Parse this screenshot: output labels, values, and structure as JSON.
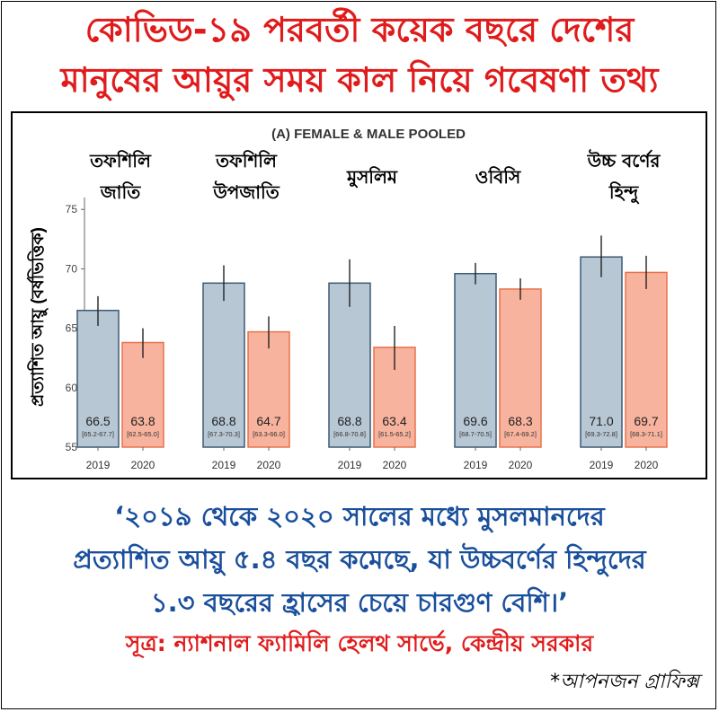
{
  "headline": {
    "line1": "কোভিড-১৯ পরবর্তী কয়েক বছরে দেশের",
    "line2": "মানুষের আয়ুর সময় কাল নিয়ে গবেষণা তথ্য"
  },
  "chart_data": {
    "type": "bar",
    "title": "(A) FEMALE & MALE POOLED",
    "ylabel": "প্রত্যাশিত আয়ু (বর্ষভিত্তিক)",
    "ylim": [
      55,
      76
    ],
    "yticks": [
      55,
      60,
      65,
      70,
      75
    ],
    "grid": false,
    "legend": "none",
    "colors": {
      "2019": "#b7c7d4",
      "2019_border": "#3e5a73",
      "2020": "#f7b39d",
      "2020_border": "#e8734d"
    },
    "groups": [
      {
        "label": [
          "তফশিলি",
          "জাতি"
        ],
        "bars": [
          {
            "year": "2019",
            "value": 66.5,
            "label": "66.5",
            "ci": [
              65.2,
              67.7
            ],
            "ci_label": "[65.2-67.7]"
          },
          {
            "year": "2020",
            "value": 63.8,
            "label": "63.8",
            "ci": [
              62.5,
              65.0
            ],
            "ci_label": "[62.5-65.0]"
          }
        ]
      },
      {
        "label": [
          "তফশিলি",
          "উপজাতি"
        ],
        "bars": [
          {
            "year": "2019",
            "value": 68.8,
            "label": "68.8",
            "ci": [
              67.3,
              70.3
            ],
            "ci_label": "[67.3-70.3]"
          },
          {
            "year": "2020",
            "value": 64.7,
            "label": "64.7",
            "ci": [
              63.3,
              66.0
            ],
            "ci_label": "[63.3-66.0]"
          }
        ]
      },
      {
        "label": [
          "মুসলিম"
        ],
        "bars": [
          {
            "year": "2019",
            "value": 68.8,
            "label": "68.8",
            "ci": [
              66.8,
              70.8
            ],
            "ci_label": "[66.8-70.8]"
          },
          {
            "year": "2020",
            "value": 63.4,
            "label": "63.4",
            "ci": [
              61.5,
              65.2
            ],
            "ci_label": "[61.5-65.2]"
          }
        ]
      },
      {
        "label": [
          "ওবিসি"
        ],
        "bars": [
          {
            "year": "2019",
            "value": 69.6,
            "label": "69.6",
            "ci": [
              68.7,
              70.5
            ],
            "ci_label": "[68.7-70.5]"
          },
          {
            "year": "2020",
            "value": 68.3,
            "label": "68.3",
            "ci": [
              67.4,
              69.2
            ],
            "ci_label": "[67.4-69.2]"
          }
        ]
      },
      {
        "label": [
          "উচ্চ বর্ণের",
          "হিন্দু"
        ],
        "bars": [
          {
            "year": "2019",
            "value": 71.0,
            "label": "71.0",
            "ci": [
              69.3,
              72.8
            ],
            "ci_label": "[69.3-72.8]"
          },
          {
            "year": "2020",
            "value": 69.7,
            "label": "69.7",
            "ci": [
              68.3,
              71.1
            ],
            "ci_label": "[68.3-71.1]"
          }
        ]
      }
    ]
  },
  "quote": {
    "line1": "‘২০১৯ থেকে ২০২০ সালের মধ্যে মুসলমানদের",
    "line2": "প্রত্যাশিত আয়ু ৫.৪ বছর কমেছে, যা উচ্চবর্ণের হিন্দুদের",
    "line3": "১.৩ বছরের হ্রাসের চেয়ে চারগুণ বেশি।’"
  },
  "source": "সূত্র: ন্যাশনাল ফ্যামিলি হেলথ সার্ভে, কেন্দ্রীয় সরকার",
  "credit": "*আপনজন গ্রাফিক্স"
}
